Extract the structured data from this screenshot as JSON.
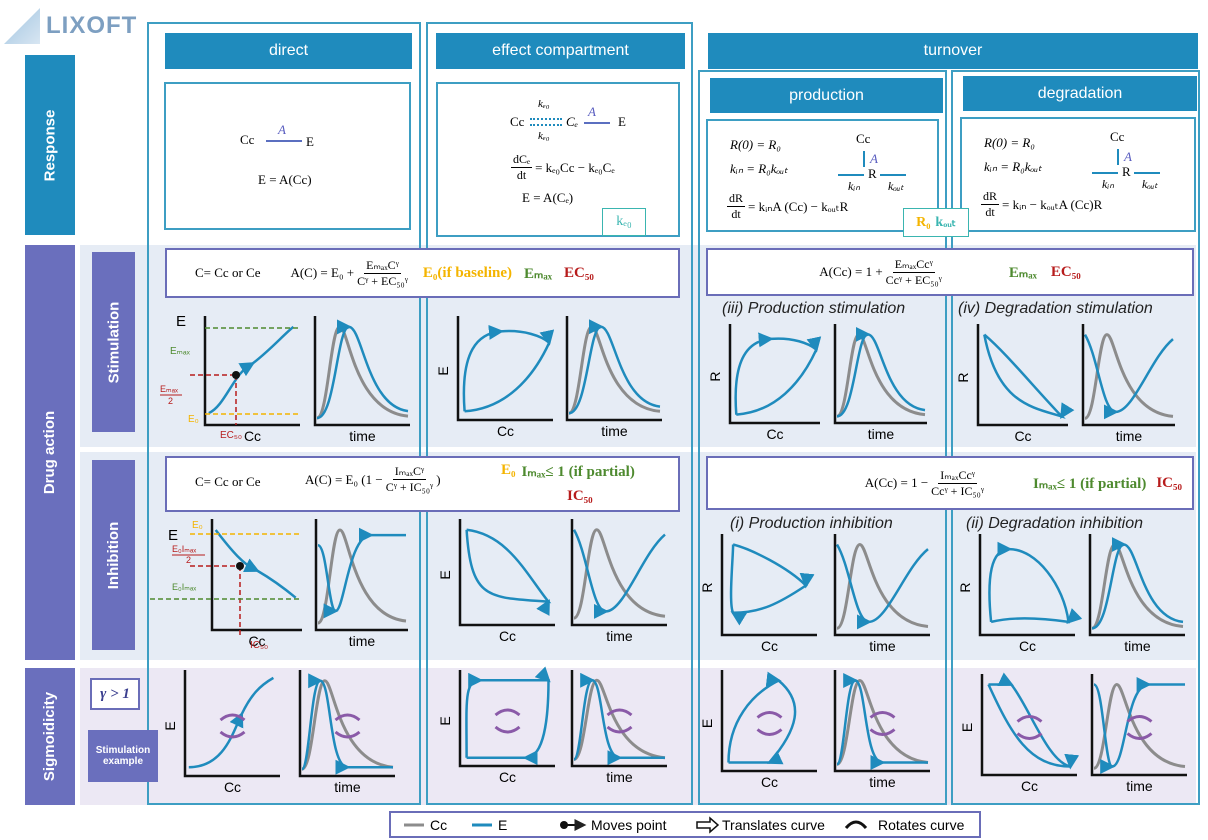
{
  "logo": "LIXOFT",
  "columns": {
    "direct": "direct",
    "effect": "effect compartment",
    "turnover": "turnover",
    "production": "production",
    "degradation": "degradation"
  },
  "rows": {
    "response": "Response",
    "drug_action": "Drug action",
    "stimulation": "Stimulation",
    "inhibition": "Inhibition",
    "sigmoidicity": "Sigmoidicity"
  },
  "response": {
    "direct": {
      "cc": "Cc",
      "a": "A",
      "e": "E",
      "eq": "E = A(Cc)"
    },
    "effect": {
      "cc": "Cc",
      "ke0_top": "kₑ₀",
      "ke0_bottom": "kₑ₀",
      "ce": "Cₑ",
      "a": "A",
      "e": "E",
      "deriv_num": "dCₑ",
      "deriv_den": "dt",
      "deriv_rhs": "= kₑ₀Cc − kₑ₀Cₑ",
      "eq": "E = A(Cₑ)",
      "badge": "kₑ₀"
    },
    "production": {
      "init": "R(0) = R₀",
      "kin": "kᵢₙ = R₀kₒᵤₜ",
      "deriv_num": "dR",
      "deriv_den": "dt",
      "deriv_rhs": "= kᵢₙA (Cc) − kₒᵤₜR",
      "cc": "Cc",
      "a": "A",
      "kin_label": "kᵢₙ",
      "r": "R",
      "kout_label": "kₒᵤₜ",
      "badge_r0": "R₀",
      "badge_kout": "kₒᵤₜ"
    },
    "degradation": {
      "init": "R(0) = R₀",
      "kin": "kᵢₙ = R₀kₒᵤₜ",
      "deriv_num": "dR",
      "deriv_den": "dt",
      "deriv_rhs": "= kᵢₙ − kₒᵤₜA (Cc)R",
      "cc": "Cc",
      "a": "A",
      "kin_label": "kᵢₙ",
      "r": "R",
      "kout_label": "kₒᵤₜ"
    }
  },
  "stimulation": {
    "formula_left": {
      "c_def": "C= Cc or Ce",
      "lhs": "A(C) = E₀ +",
      "num": "EₘₐₓCᵞ",
      "den": "Cᵞ + EC₅₀ᵞ",
      "e0": "E₀(if baseline)",
      "emax": "Eₘₐₓ",
      "ec50": "EC₅₀"
    },
    "formula_right": {
      "lhs": "A(Cc) = 1 +",
      "num": "EₘₐₓCcᵞ",
      "den": "Ccᵞ + EC₅₀ᵞ",
      "emax": "Eₘₐₓ",
      "ec50": "EC₅₀"
    },
    "titles": [
      "(iii) Production stimulation",
      "(iv) Degradation stimulation"
    ],
    "annotations": {
      "e": "E",
      "emax": "Eₘₐₓ",
      "emax_half_num": "Eₘₐₓ",
      "emax_half_den": "2",
      "e0": "E₀",
      "ec50": "EC₅₀"
    }
  },
  "inhibition": {
    "formula_left": {
      "c_def": "C= Cc or Ce",
      "lhs": "A(C) = E₀ (1 −",
      "num": "IₘₐₓCᵞ",
      "den": "Cᵞ + IC₅₀ᵞ",
      "tail": ")",
      "e0": "E₀",
      "imax": "Iₘₐₓ≤ 1 (if partial)",
      "ic50": "IC₅₀"
    },
    "formula_right": {
      "lhs": "A(Cc) = 1 −",
      "num": "IₘₐₓCcᵞ",
      "den": "Ccᵞ + IC₅₀ᵞ",
      "imax": "Iₘₐₓ≤ 1 (if partial)",
      "ic50": "IC₅₀"
    },
    "titles": [
      "(i) Production inhibition",
      "(ii) Degradation inhibition"
    ],
    "annotations": {
      "e": "E",
      "e0": "E₀",
      "e0imax_half_num": "E₀Iₘₐₓ",
      "e0imax_half_den": "2",
      "e0imax": "E₀Iₘₐₓ",
      "ic50": "IC₅₀"
    }
  },
  "sigmoidicity": {
    "gamma": "γ > 1",
    "example": "Stimulation example"
  },
  "plots": [
    {
      "x_label": "Cc"
    },
    {
      "x_label": "time"
    },
    {
      "x_label": "Cc",
      "y_label": "E"
    },
    {
      "x_label": "time"
    },
    {
      "x_label": "Cc",
      "y_label": "R"
    },
    {
      "x_label": "time"
    },
    {
      "x_label": "Cc",
      "y_label": "R"
    },
    {
      "x_label": "time"
    },
    {
      "x_label": "Cc"
    },
    {
      "x_label": "time"
    },
    {
      "x_label": "Cc",
      "y_label": "E"
    },
    {
      "x_label": "time"
    },
    {
      "x_label": "Cc",
      "y_label": "R"
    },
    {
      "x_label": "time"
    },
    {
      "x_label": "Cc",
      "y_label": "R"
    },
    {
      "x_label": "time"
    },
    {
      "x_label": "Cc",
      "y_label": "E"
    },
    {
      "x_label": "time"
    },
    {
      "x_label": "Cc",
      "y_label": "E"
    },
    {
      "x_label": "time"
    },
    {
      "x_label": "Cc",
      "y_label": "E"
    },
    {
      "x_label": "time"
    },
    {
      "x_label": "Cc",
      "y_label": "E"
    },
    {
      "x_label": "time"
    }
  ],
  "legend": {
    "cc": "Cc",
    "e": "E",
    "moves": "Moves point",
    "translates": "Translates curve",
    "rotates": "Rotates curve"
  }
}
